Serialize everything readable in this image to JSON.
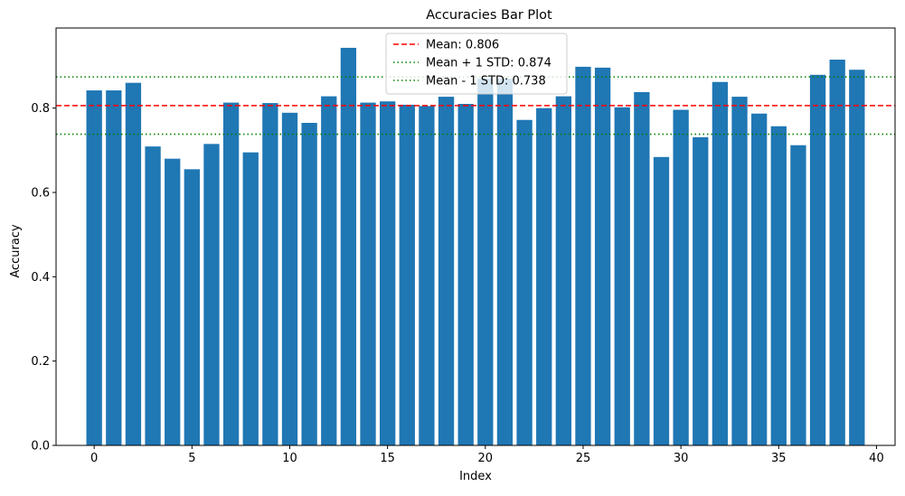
{
  "chart_data": {
    "type": "bar",
    "title": "Accuracies Bar Plot",
    "xlabel": "Index",
    "ylabel": "Accuracy",
    "x": [
      0,
      1,
      2,
      3,
      4,
      5,
      6,
      7,
      8,
      9,
      10,
      11,
      12,
      13,
      14,
      15,
      16,
      17,
      18,
      19,
      20,
      21,
      22,
      23,
      24,
      25,
      26,
      27,
      28,
      29,
      30,
      31,
      32,
      33,
      34,
      35,
      36,
      37,
      38,
      39
    ],
    "values": [
      0.842,
      0.842,
      0.86,
      0.709,
      0.68,
      0.655,
      0.715,
      0.813,
      0.695,
      0.812,
      0.789,
      0.765,
      0.828,
      0.943,
      0.813,
      0.816,
      0.808,
      0.805,
      0.827,
      0.81,
      0.87,
      0.87,
      0.772,
      0.8,
      0.828,
      0.898,
      0.896,
      0.802,
      0.838,
      0.684,
      0.796,
      0.731,
      0.862,
      0.827,
      0.787,
      0.757,
      0.712,
      0.879,
      0.915,
      0.891
    ],
    "xlim": [
      -1.95,
      40.95
    ],
    "ylim": [
      0,
      0.99
    ],
    "xticks": [
      0,
      5,
      10,
      15,
      20,
      25,
      30,
      35,
      40
    ],
    "yticks": [
      0.0,
      0.2,
      0.4,
      0.6,
      0.8
    ],
    "bar_color": "#1f77b4",
    "reference_lines": [
      {
        "label": "Mean: 0.806",
        "value": 0.806,
        "color": "#ff0000",
        "style": "dashed"
      },
      {
        "label": "Mean + 1 STD: 0.874",
        "value": 0.874,
        "color": "#008000",
        "style": "dotted"
      },
      {
        "label": "Mean - 1 STD: 0.738",
        "value": 0.738,
        "color": "#008000",
        "style": "dotted"
      }
    ],
    "legend_position": "upper-center",
    "grid": false
  }
}
